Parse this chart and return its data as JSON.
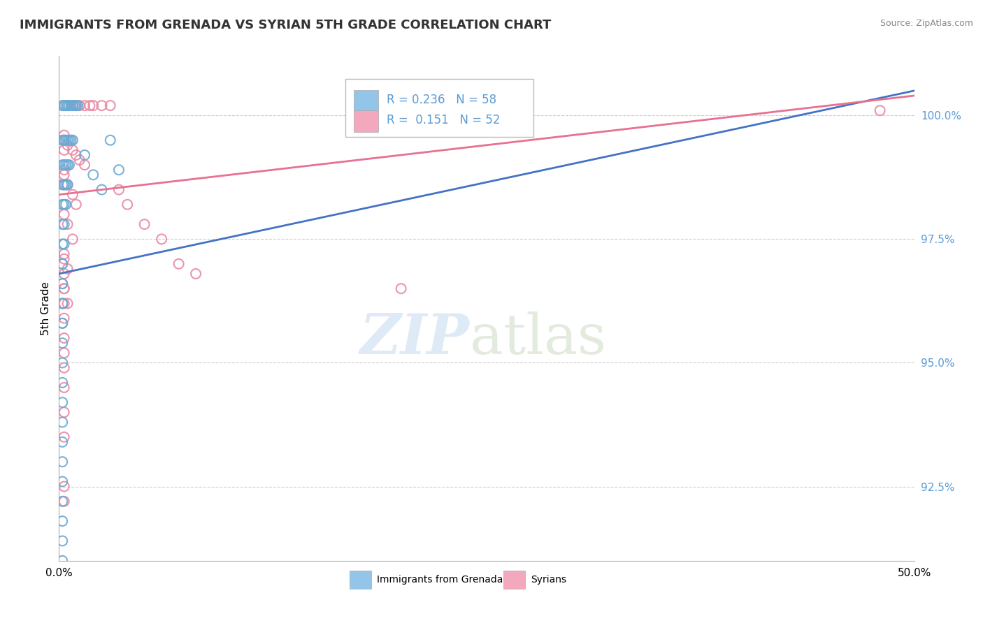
{
  "title": "IMMIGRANTS FROM GRENADA VS SYRIAN 5TH GRADE CORRELATION CHART",
  "source": "Source: ZipAtlas.com",
  "ylabel": "5th Grade",
  "ytick_values": [
    92.5,
    95.0,
    97.5,
    100.0
  ],
  "xmin": 0.0,
  "xmax": 50.0,
  "ymin": 91.0,
  "ymax": 101.2,
  "legend_blue_label": "Immigrants from Grenada",
  "legend_pink_label": "Syrians",
  "R_blue": 0.236,
  "N_blue": 58,
  "R_pink": 0.151,
  "N_pink": 52,
  "blue_color": "#92C5E8",
  "pink_color": "#F4A8BE",
  "blue_edge_color": "#6AAAD4",
  "pink_edge_color": "#E88AA4",
  "blue_line_color": "#4472C4",
  "pink_line_color": "#E87090",
  "blue_line_x": [
    0.0,
    50.0
  ],
  "blue_line_y": [
    96.8,
    100.5
  ],
  "pink_line_x": [
    0.0,
    50.0
  ],
  "pink_line_y": [
    98.4,
    100.4
  ],
  "blue_x": [
    0.2,
    0.3,
    0.4,
    0.5,
    0.6,
    0.7,
    0.8,
    0.9,
    1.0,
    1.1,
    0.2,
    0.3,
    0.4,
    0.5,
    0.6,
    0.7,
    0.8,
    0.2,
    0.3,
    0.4,
    0.5,
    0.6,
    0.2,
    0.3,
    0.4,
    0.5,
    0.2,
    0.3,
    0.4,
    0.2,
    0.3,
    0.2,
    0.3,
    0.2,
    0.2,
    0.2,
    0.2,
    0.2,
    0.2,
    0.2,
    0.2,
    1.5,
    2.0,
    2.5,
    3.0,
    3.5,
    0.2,
    0.2,
    0.2,
    0.2,
    0.2,
    0.2,
    0.2,
    0.2,
    0.2,
    0.2,
    0.2,
    0.2
  ],
  "blue_y": [
    100.2,
    100.2,
    100.2,
    100.2,
    100.2,
    100.2,
    100.2,
    100.2,
    100.2,
    100.2,
    99.5,
    99.5,
    99.5,
    99.5,
    99.5,
    99.5,
    99.5,
    99.0,
    99.0,
    99.0,
    99.0,
    99.0,
    98.6,
    98.6,
    98.6,
    98.6,
    98.2,
    98.2,
    98.2,
    97.8,
    97.8,
    97.4,
    97.4,
    97.0,
    97.0,
    96.6,
    96.6,
    96.2,
    96.2,
    95.8,
    95.8,
    99.2,
    98.8,
    98.5,
    99.5,
    98.9,
    95.4,
    95.0,
    94.6,
    94.2,
    93.8,
    93.4,
    93.0,
    92.6,
    92.2,
    91.8,
    91.4,
    91.0
  ],
  "pink_x": [
    0.3,
    0.5,
    0.8,
    1.0,
    1.2,
    1.5,
    1.8,
    2.0,
    2.5,
    3.0,
    0.3,
    0.5,
    0.8,
    1.0,
    1.2,
    1.5,
    0.3,
    0.5,
    0.8,
    1.0,
    0.3,
    0.5,
    0.8,
    0.3,
    0.5,
    0.3,
    0.5,
    0.3,
    0.3,
    0.3,
    0.3,
    3.5,
    4.0,
    5.0,
    6.0,
    0.3,
    0.3,
    0.3,
    0.3,
    0.3,
    20.0,
    0.3,
    0.3,
    0.3,
    0.3,
    0.3,
    7.0,
    8.0,
    48.0,
    0.3,
    0.3,
    0.3
  ],
  "pink_y": [
    100.2,
    100.2,
    100.2,
    100.2,
    100.2,
    100.2,
    100.2,
    100.2,
    100.2,
    100.2,
    99.5,
    99.4,
    99.3,
    99.2,
    99.1,
    99.0,
    98.8,
    98.6,
    98.4,
    98.2,
    98.0,
    97.8,
    97.5,
    97.2,
    96.9,
    96.5,
    96.2,
    99.6,
    99.3,
    98.9,
    98.6,
    98.5,
    98.2,
    97.8,
    97.5,
    97.1,
    96.8,
    96.5,
    96.2,
    95.9,
    96.5,
    95.5,
    95.2,
    94.9,
    94.5,
    94.0,
    97.0,
    96.8,
    100.1,
    93.5,
    92.5,
    92.2
  ]
}
